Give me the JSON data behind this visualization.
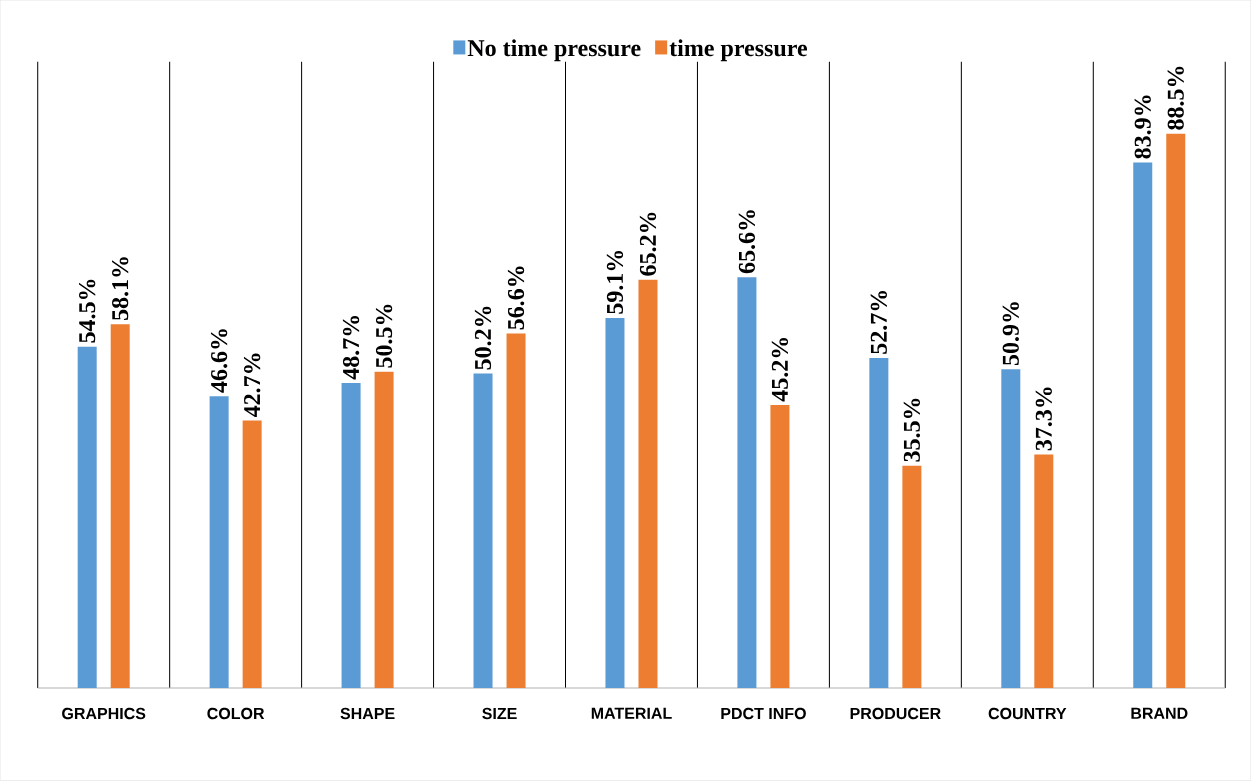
{
  "chart_data": {
    "type": "bar",
    "categories": [
      "GRAPHICS",
      "COLOR",
      "SHAPE",
      "SIZE",
      "MATERIAL",
      "PDCT INFO",
      "PRODUCER",
      "COUNTRY",
      "BRAND"
    ],
    "series": [
      {
        "name": "No time pressure",
        "color": "#5b9bd5",
        "values": [
          54.5,
          46.6,
          48.7,
          50.2,
          59.1,
          65.6,
          52.7,
          50.9,
          83.9
        ],
        "value_labels": [
          "54.5%",
          "46.6%",
          "48.7%",
          "50.2%",
          "59.1%",
          "65.6%",
          "52.7%",
          "50.9%",
          "83.9%"
        ]
      },
      {
        "name": "time pressure",
        "color": "#ed7d31",
        "values": [
          58.1,
          42.7,
          50.5,
          56.6,
          65.2,
          45.2,
          35.5,
          37.3,
          88.5
        ],
        "value_labels": [
          "58.1%",
          "42.7%",
          "50.5%",
          "56.6%",
          "65.2%",
          "45.2%",
          "35.5%",
          "37.3%",
          "88.5%"
        ]
      }
    ],
    "ylim": [
      0,
      100
    ],
    "grid": "x",
    "legend": "top"
  }
}
